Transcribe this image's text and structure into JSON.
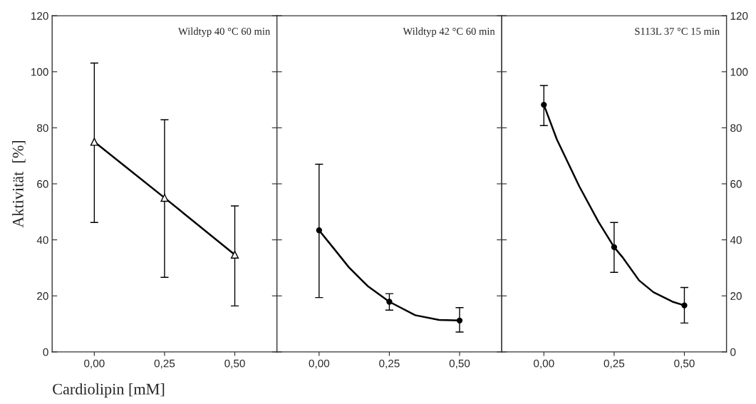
{
  "chart_data": [
    {
      "type": "line",
      "title": "Wildtyp 40 °C 60 min",
      "ylabel": "Aktivität  [%]",
      "xlabel": "Cardiolipin [mM]",
      "x": [
        0,
        0.25,
        0.5
      ],
      "xlim": [
        -0.15,
        0.65
      ],
      "xticks": [
        {
          "value": 0,
          "label": "0,00"
        },
        {
          "value": 0.25,
          "label": "0,25"
        },
        {
          "value": 0.5,
          "label": "0,50"
        }
      ],
      "ylim": [
        0,
        120
      ],
      "yticks": [
        0,
        20,
        40,
        60,
        80,
        100,
        120
      ],
      "marker": "triangle",
      "line_style": "solid",
      "grid": false,
      "legend": false,
      "series": [
        {
          "color": "#000000",
          "values": [
            75,
            55,
            34.7
          ],
          "errors": [
            [
              46.2,
              103.1
            ],
            [
              26.6,
              82.9
            ],
            [
              16.4,
              52.1
            ]
          ]
        }
      ]
    },
    {
      "type": "scatter",
      "title": "Wildtyp 42 °C 60 min",
      "x": [
        0,
        0.25,
        0.5
      ],
      "xlim": [
        -0.15,
        0.65
      ],
      "xticks": [
        {
          "value": 0,
          "label": "0,00"
        },
        {
          "value": 0.25,
          "label": "0,25"
        },
        {
          "value": 0.5,
          "label": "0,50"
        }
      ],
      "ylim": [
        0,
        120
      ],
      "yticks": [
        0,
        20,
        40,
        60,
        80,
        100,
        120
      ],
      "tick_labels": "x",
      "marker": "circle",
      "line_style": "solid",
      "grid": false,
      "legend": false,
      "series": [
        {
          "color": "#000000",
          "values": [
            43.4,
            17.9,
            11.2
          ],
          "errors": [
            [
              19.4,
              67
            ],
            [
              14.9,
              20.8
            ],
            [
              7.1,
              15.8
            ]
          ]
        },
        {
          "type": "line",
          "marker": "none",
          "color": "#000000",
          "x": [
            0,
            0.046,
            0.106,
            0.173,
            0.25,
            0.342,
            0.427,
            0.5
          ],
          "values": [
            43.4,
            37.7,
            30.2,
            23.5,
            17.9,
            13.1,
            11.4,
            11.2
          ]
        }
      ]
    },
    {
      "type": "scatter",
      "title": "S113L 37 °C 15 min",
      "x": [
        0,
        0.25,
        0.5
      ],
      "xlim": [
        -0.15,
        0.65
      ],
      "xticks": [
        {
          "value": 0,
          "label": "0,00"
        },
        {
          "value": 0.25,
          "label": "0,25"
        },
        {
          "value": 0.5,
          "label": "0,50"
        }
      ],
      "ylim": [
        0,
        120
      ],
      "yticks": [
        0,
        20,
        40,
        60,
        80,
        100,
        120
      ],
      "tick_labels": "right",
      "marker": "circle",
      "line_style": "solid",
      "grid": false,
      "legend": false,
      "series": [
        {
          "color": "#000000",
          "values": [
            88.2,
            37.4,
            16.6
          ],
          "errors": [
            [
              80.8,
              95.1
            ],
            [
              28.4,
              46.2
            ],
            [
              10.3,
              23.0
            ]
          ]
        },
        {
          "type": "line",
          "marker": "none",
          "color": "#000000",
          "x": [
            0,
            0.046,
            0.126,
            0.194,
            0.25,
            0.279,
            0.339,
            0.39,
            0.458,
            0.5
          ],
          "values": [
            88.2,
            75.9,
            59.1,
            46.5,
            37.4,
            33.9,
            25.5,
            21.3,
            17.9,
            16.6
          ]
        }
      ]
    }
  ]
}
